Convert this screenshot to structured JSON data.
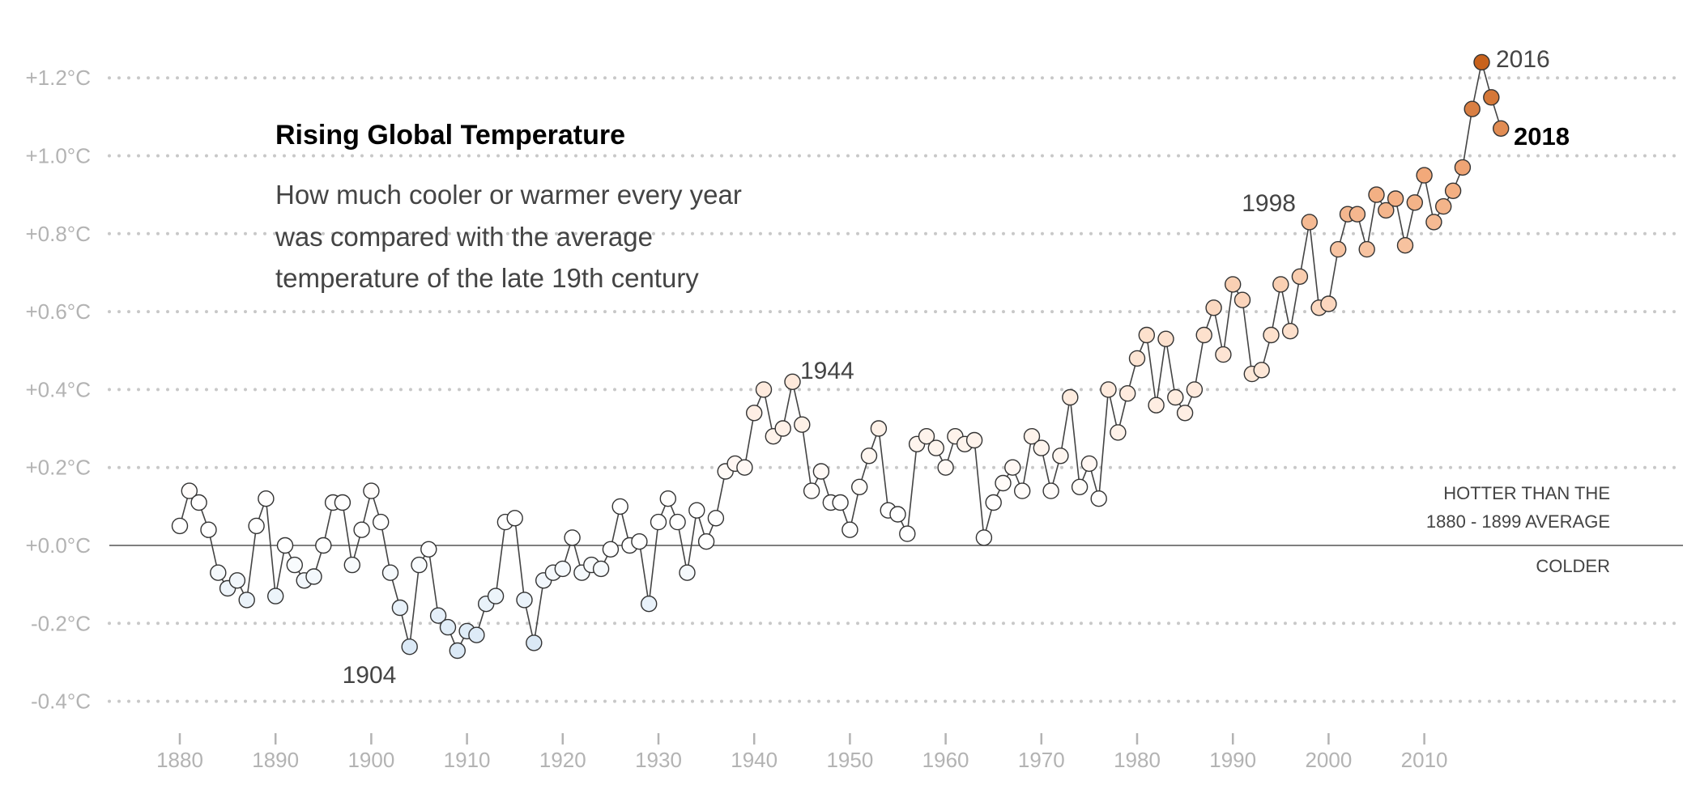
{
  "chart_data": {
    "type": "scatter",
    "title": "Rising Global Temperature",
    "subtitle_lines": [
      "How much cooler or warmer every year",
      "was compared with the average",
      "temperature of the late 19th century"
    ],
    "x_range": [
      1880,
      2018
    ],
    "ylim": [
      -0.4,
      1.2
    ],
    "y_ticks": [
      {
        "value": 1.2,
        "label": "+1.2°C"
      },
      {
        "value": 1.0,
        "label": "+1.0°C"
      },
      {
        "value": 0.8,
        "label": "+0.8°C"
      },
      {
        "value": 0.6,
        "label": "+0.6°C"
      },
      {
        "value": 0.4,
        "label": "+0.4°C"
      },
      {
        "value": 0.2,
        "label": "+0.2°C"
      },
      {
        "value": 0.0,
        "label": "+0.0°C"
      },
      {
        "value": -0.2,
        "label": "-0.2°C"
      },
      {
        "value": -0.4,
        "label": "-0.4°C"
      }
    ],
    "x_ticks": [
      {
        "value": 1880,
        "label": "1880"
      },
      {
        "value": 1890,
        "label": "1890"
      },
      {
        "value": 1900,
        "label": "1900"
      },
      {
        "value": 1910,
        "label": "1910"
      },
      {
        "value": 1920,
        "label": "1920"
      },
      {
        "value": 1930,
        "label": "1930"
      },
      {
        "value": 1940,
        "label": "1940"
      },
      {
        "value": 1950,
        "label": "1950"
      },
      {
        "value": 1960,
        "label": "1960"
      },
      {
        "value": 1970,
        "label": "1970"
      },
      {
        "value": 1980,
        "label": "1980"
      },
      {
        "value": 1990,
        "label": "1990"
      },
      {
        "value": 2000,
        "label": "2000"
      },
      {
        "value": 2010,
        "label": "2010"
      }
    ],
    "grid": true,
    "reference_labels": {
      "above_line_1": "HOTTER THAN THE",
      "above_line_2": "1880 - 1899 AVERAGE",
      "below": "COLDER"
    },
    "annotations": [
      {
        "year": 1904,
        "text": "1904",
        "bold": false
      },
      {
        "year": 1944,
        "text": "1944",
        "bold": false
      },
      {
        "year": 1998,
        "text": "1998",
        "bold": false
      },
      {
        "year": 2016,
        "text": "2016",
        "bold": false
      },
      {
        "year": 2018,
        "text": "2018",
        "bold": true
      }
    ],
    "color_scale": {
      "cold": "#dbe9f6",
      "neutral": "#ffffff",
      "warm_low": "#fde0cc",
      "warm_mid": "#f2a97a",
      "hot": "#c8621c"
    },
    "x": [
      1880,
      1881,
      1882,
      1883,
      1884,
      1885,
      1886,
      1887,
      1888,
      1889,
      1890,
      1891,
      1892,
      1893,
      1894,
      1895,
      1896,
      1897,
      1898,
      1899,
      1900,
      1901,
      1902,
      1903,
      1904,
      1905,
      1906,
      1907,
      1908,
      1909,
      1910,
      1911,
      1912,
      1913,
      1914,
      1915,
      1916,
      1917,
      1918,
      1919,
      1920,
      1921,
      1922,
      1923,
      1924,
      1925,
      1926,
      1927,
      1928,
      1929,
      1930,
      1931,
      1932,
      1933,
      1934,
      1935,
      1936,
      1937,
      1938,
      1939,
      1940,
      1941,
      1942,
      1943,
      1944,
      1945,
      1946,
      1947,
      1948,
      1949,
      1950,
      1951,
      1952,
      1953,
      1954,
      1955,
      1956,
      1957,
      1958,
      1959,
      1960,
      1961,
      1962,
      1963,
      1964,
      1965,
      1966,
      1967,
      1968,
      1969,
      1970,
      1971,
      1972,
      1973,
      1974,
      1975,
      1976,
      1977,
      1978,
      1979,
      1980,
      1981,
      1982,
      1983,
      1984,
      1985,
      1986,
      1987,
      1988,
      1989,
      1990,
      1991,
      1992,
      1993,
      1994,
      1995,
      1996,
      1997,
      1998,
      1999,
      2000,
      2001,
      2002,
      2003,
      2004,
      2005,
      2006,
      2007,
      2008,
      2009,
      2010,
      2011,
      2012,
      2013,
      2014,
      2015,
      2016,
      2017,
      2018
    ],
    "y": [
      0.05,
      0.14,
      0.11,
      0.04,
      -0.07,
      -0.11,
      -0.09,
      -0.14,
      0.05,
      0.12,
      -0.13,
      0.0,
      -0.05,
      -0.09,
      -0.08,
      0.0,
      0.11,
      0.11,
      -0.05,
      0.04,
      0.14,
      0.06,
      -0.07,
      -0.16,
      -0.26,
      -0.05,
      -0.01,
      -0.18,
      -0.21,
      -0.27,
      -0.22,
      -0.23,
      -0.15,
      -0.13,
      0.06,
      0.07,
      -0.14,
      -0.25,
      -0.09,
      -0.07,
      -0.06,
      0.02,
      -0.07,
      -0.05,
      -0.06,
      -0.01,
      0.1,
      0.0,
      0.01,
      -0.15,
      0.06,
      0.12,
      0.06,
      -0.07,
      0.09,
      0.01,
      0.07,
      0.19,
      0.21,
      0.2,
      0.34,
      0.4,
      0.28,
      0.3,
      0.42,
      0.31,
      0.14,
      0.19,
      0.11,
      0.11,
      0.04,
      0.15,
      0.23,
      0.3,
      0.09,
      0.08,
      0.03,
      0.26,
      0.28,
      0.25,
      0.2,
      0.28,
      0.26,
      0.27,
      0.02,
      0.11,
      0.16,
      0.2,
      0.14,
      0.28,
      0.25,
      0.14,
      0.23,
      0.38,
      0.15,
      0.21,
      0.12,
      0.4,
      0.29,
      0.39,
      0.48,
      0.54,
      0.36,
      0.53,
      0.38,
      0.34,
      0.4,
      0.54,
      0.61,
      0.49,
      0.67,
      0.63,
      0.44,
      0.45,
      0.54,
      0.67,
      0.55,
      0.69,
      0.83,
      0.61,
      0.62,
      0.76,
      0.85,
      0.85,
      0.76,
      0.9,
      0.86,
      0.89,
      0.77,
      0.88,
      0.95,
      0.83,
      0.87,
      0.91,
      0.97,
      1.12,
      1.24,
      1.15,
      1.07
    ]
  }
}
